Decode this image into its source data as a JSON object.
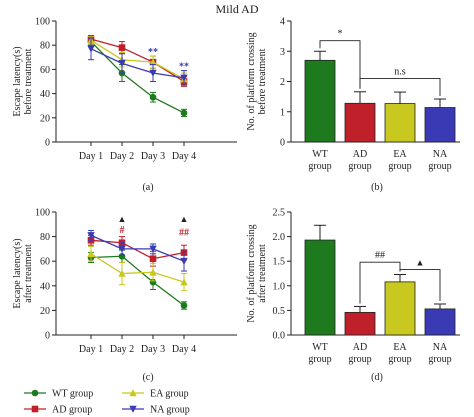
{
  "figure": {
    "title": "Mild AD"
  },
  "colors": {
    "WT": "#1d7a1d",
    "AD": "#c0202a",
    "EA": "#c8c820",
    "NA": "#3a3ab5",
    "axis": "#222222"
  },
  "legend": [
    {
      "key": "WT",
      "label": "WT group"
    },
    {
      "key": "EA",
      "label": "EA group"
    },
    {
      "key": "AD",
      "label": "AD group"
    },
    {
      "key": "NA",
      "label": "NA group"
    }
  ],
  "chart_data": [
    {
      "id": "a",
      "panel_label": "(a)",
      "type": "line",
      "ylabel_lines": [
        "Escape latency(s)",
        "before treatment"
      ],
      "categories": [
        "Day 1",
        "Day 2",
        "Day 3",
        "Day 4"
      ],
      "ylim": [
        0,
        100
      ],
      "yticks": [
        0,
        20,
        40,
        60,
        80,
        100
      ],
      "series": [
        {
          "name": "WT group",
          "key": "WT",
          "marker": "circle",
          "values": [
            83,
            57,
            37,
            24
          ],
          "err": [
            3,
            7,
            4,
            3
          ]
        },
        {
          "name": "AD group",
          "key": "AD",
          "marker": "square",
          "values": [
            85,
            78,
            66,
            50
          ],
          "err": [
            3,
            5,
            5,
            4
          ]
        },
        {
          "name": "EA group",
          "key": "EA",
          "marker": "triangle",
          "values": [
            84,
            68,
            66,
            52
          ],
          "err": [
            3,
            6,
            5,
            5
          ]
        },
        {
          "name": "NA group",
          "key": "NA",
          "marker": "triangle-down",
          "values": [
            77,
            65,
            57,
            53
          ],
          "err": [
            9,
            8,
            7,
            6
          ]
        }
      ],
      "annotations": [
        {
          "text": "**",
          "cat": 2,
          "y": 72,
          "color": "#3a3ab5"
        },
        {
          "text": "**",
          "cat": 3,
          "y": 60,
          "color": "#3a3ab5"
        }
      ]
    },
    {
      "id": "b",
      "panel_label": "(b)",
      "type": "bar",
      "ylabel_lines": [
        "No. of platform crossing",
        "before treatment"
      ],
      "categories": [
        [
          "WT",
          "group"
        ],
        [
          "AD",
          "group"
        ],
        [
          "EA",
          "group"
        ],
        [
          "NA",
          "group"
        ]
      ],
      "ylim": [
        0,
        4
      ],
      "yticks": [
        0,
        1,
        2,
        3,
        4
      ],
      "ytick_labels": [
        "0",
        "1",
        "2",
        "3",
        "4"
      ],
      "keys": [
        "WT",
        "AD",
        "EA",
        "NA"
      ],
      "values": [
        2.7,
        1.28,
        1.27,
        1.14
      ],
      "err": [
        0.3,
        0.38,
        0.38,
        0.28
      ],
      "brackets": [
        {
          "from": 0,
          "to": 1,
          "y": 3.35,
          "text": "*"
        },
        {
          "from": 1,
          "to": 3,
          "y": 2.1,
          "text": "n.s"
        }
      ]
    },
    {
      "id": "c",
      "panel_label": "(c)",
      "type": "line",
      "ylabel_lines": [
        "Escape latency(s)",
        "after treatment"
      ],
      "categories": [
        "Day 1",
        "Day 2",
        "Day 3",
        "Day 4"
      ],
      "ylim": [
        0,
        100
      ],
      "yticks": [
        0,
        20,
        40,
        60,
        80,
        100
      ],
      "series": [
        {
          "name": "WT group",
          "key": "WT",
          "marker": "circle",
          "values": [
            63,
            64,
            43,
            24
          ],
          "err": [
            4,
            5,
            6,
            3
          ]
        },
        {
          "name": "AD group",
          "key": "AD",
          "marker": "square",
          "values": [
            77,
            75,
            62,
            67
          ],
          "err": [
            4,
            5,
            6,
            6
          ]
        },
        {
          "name": "EA group",
          "key": "EA",
          "marker": "triangle",
          "values": [
            66,
            50,
            51,
            43
          ],
          "err": [
            6,
            9,
            7,
            7
          ]
        },
        {
          "name": "NA group",
          "key": "NA",
          "marker": "triangle-down",
          "values": [
            81,
            70,
            70,
            60
          ],
          "err": [
            4,
            5,
            4,
            8
          ]
        }
      ],
      "annotations": [
        {
          "text": "▲",
          "cat": 1,
          "y": 92,
          "color": "#222222"
        },
        {
          "text": "#",
          "cat": 1,
          "y": 83,
          "color": "#c0202a"
        },
        {
          "text": "▲",
          "cat": 3,
          "y": 92,
          "color": "#222222"
        },
        {
          "text": "##",
          "cat": 3,
          "y": 81,
          "color": "#c0202a"
        }
      ]
    },
    {
      "id": "d",
      "panel_label": "(d)",
      "type": "bar",
      "ylabel_lines": [
        "No. of platform crossing",
        "after treatment"
      ],
      "categories": [
        [
          "WT",
          "group"
        ],
        [
          "AD",
          "group"
        ],
        [
          "EA",
          "group"
        ],
        [
          "NA",
          "group"
        ]
      ],
      "ylim": [
        0,
        2.5
      ],
      "yticks": [
        0,
        0.5,
        1,
        1.5,
        2,
        2.5
      ],
      "ytick_labels": [
        "0.0",
        "0.5",
        "1.0",
        "1.5",
        "2.0",
        "2.5"
      ],
      "keys": [
        "WT",
        "AD",
        "EA",
        "NA"
      ],
      "values": [
        1.93,
        0.46,
        1.08,
        0.53
      ],
      "err": [
        0.3,
        0.12,
        0.15,
        0.1
      ],
      "brackets": [
        {
          "from": 1,
          "to": 2,
          "y": 1.48,
          "text": "##"
        },
        {
          "from": 2,
          "to": 3,
          "y": 1.33,
          "text": "▲"
        }
      ]
    }
  ]
}
